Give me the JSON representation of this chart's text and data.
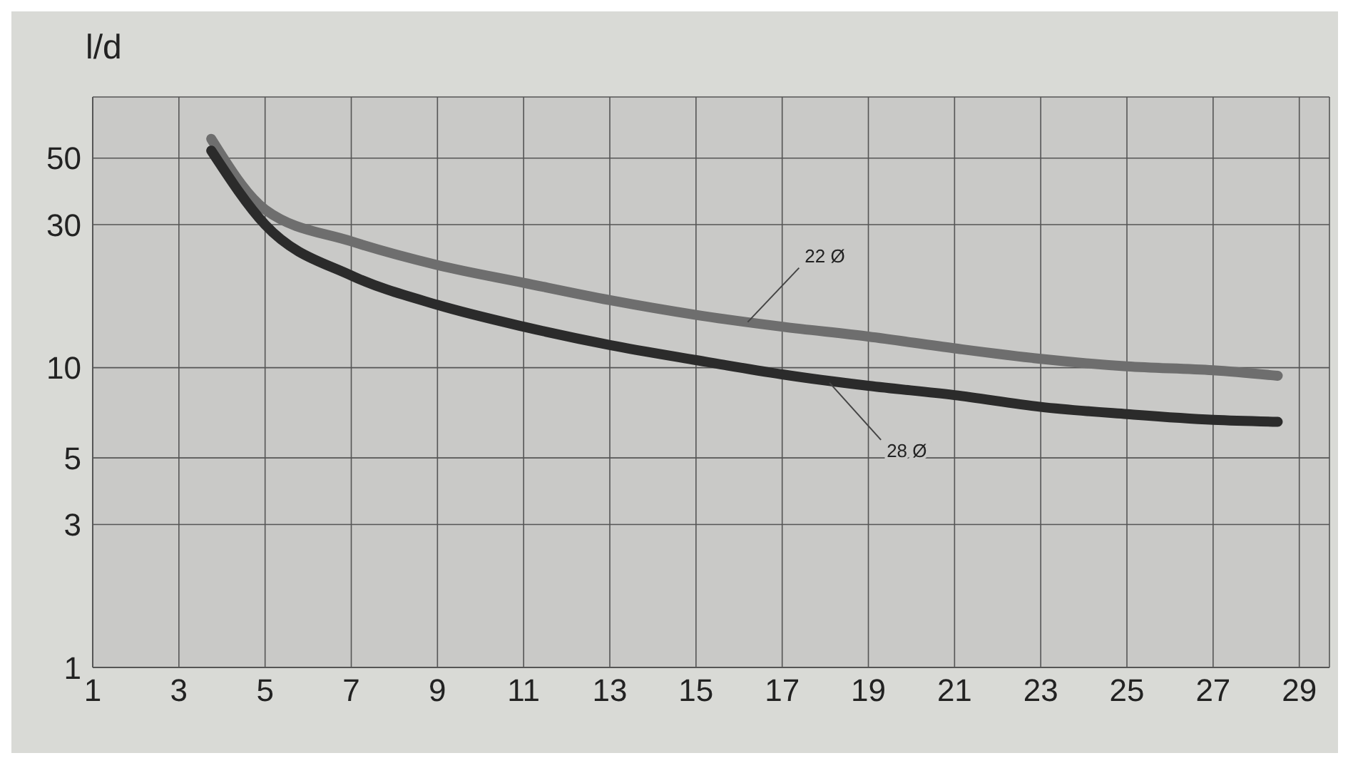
{
  "chart_data": {
    "type": "line",
    "ylabel": "l/d",
    "log": "y",
    "grid": true,
    "marker": "none",
    "line_style": "solid",
    "xlim": [
      1,
      29.7
    ],
    "xticks": [
      1,
      3,
      5,
      7,
      9,
      11,
      13,
      15,
      17,
      19,
      21,
      23,
      25,
      27,
      29
    ],
    "ylim": [
      1,
      80
    ],
    "yticks": [
      1,
      3,
      5,
      10,
      30,
      50
    ],
    "series": [
      {
        "color": "#6e6e6e",
        "x": [
          3.75,
          5,
          7,
          9,
          11,
          13,
          15,
          17,
          19,
          21,
          23,
          25,
          27,
          28.5
        ],
        "values": [
          58,
          33.7,
          26.4,
          22,
          19.2,
          16.8,
          15,
          13.7,
          12.7,
          11.6,
          10.7,
          10.1,
          9.8,
          9.4
        ]
      },
      {
        "color": "#2b2b2b",
        "x": [
          3.75,
          5,
          7,
          9,
          11,
          13,
          15,
          17,
          19,
          21,
          23,
          25,
          27,
          28.5
        ],
        "values": [
          53,
          30,
          20.3,
          16.2,
          13.7,
          11.9,
          10.6,
          9.5,
          8.7,
          8.1,
          7.4,
          7,
          6.7,
          6.6
        ]
      }
    ],
    "annotations": [
      {
        "text": "22 Ø",
        "x": 16.2,
        "y": 14.2
      },
      {
        "text": "28 Ø",
        "x": 18.1,
        "y": 8.9
      }
    ]
  }
}
